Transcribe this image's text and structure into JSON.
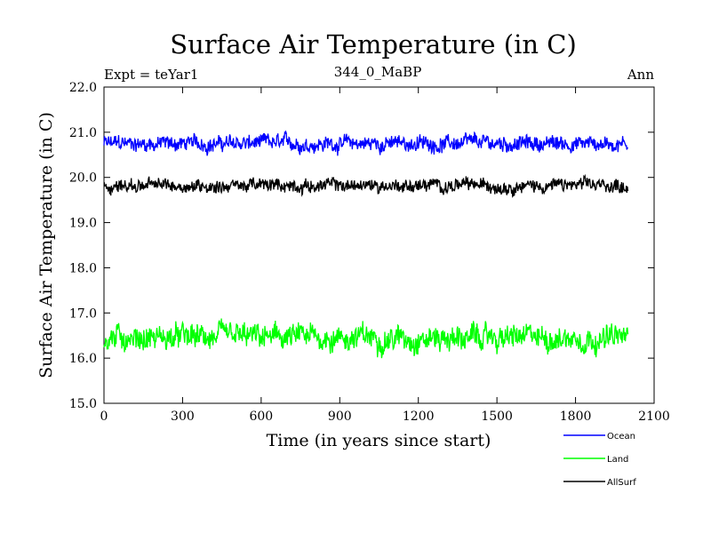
{
  "chart_data": {
    "type": "line",
    "title": "Surface Air Temperature (in C)",
    "subtitle_left": "Expt = teYar1",
    "subtitle_center": "344_0_MaBP",
    "subtitle_right": "Ann",
    "xlabel": "Time (in years since start)",
    "ylabel": "Surface Air Temperature (in C)",
    "xlim": [
      0,
      2100
    ],
    "ylim": [
      15.0,
      22.0
    ],
    "x_ticks": [
      "0",
      "300",
      "600",
      "900",
      "1200",
      "1500",
      "1800",
      "2100"
    ],
    "y_ticks": [
      "15.0",
      "16.0",
      "17.0",
      "18.0",
      "19.0",
      "20.0",
      "21.0",
      "22.0"
    ],
    "grid": false,
    "legend_position": "bottom-right",
    "series": [
      {
        "name": "Ocean",
        "color": "#0000ff",
        "mean": 20.75,
        "amplitude": 0.14,
        "x_range": [
          0,
          2000
        ]
      },
      {
        "name": "Land",
        "color": "#00ff00",
        "mean": 16.45,
        "amplitude": 0.22,
        "x_range": [
          0,
          2000
        ]
      },
      {
        "name": "AllSurf",
        "color": "#000000",
        "mean": 19.82,
        "amplitude": 0.12,
        "x_range": [
          0,
          2000
        ]
      }
    ]
  }
}
